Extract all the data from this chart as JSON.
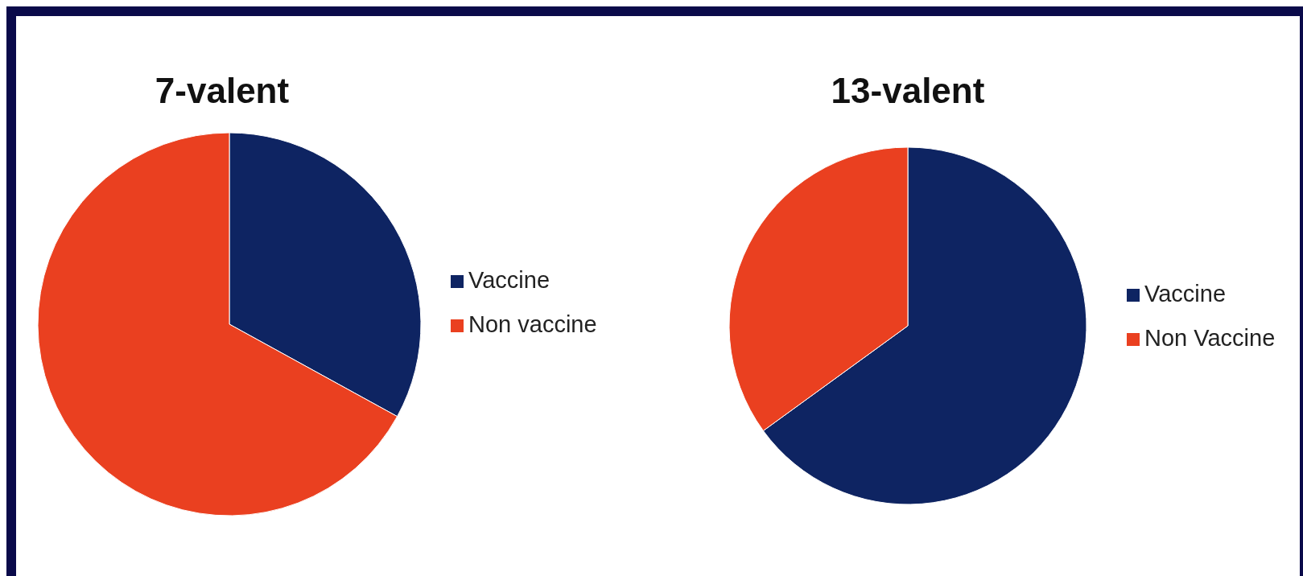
{
  "chart_data": [
    {
      "type": "pie",
      "title": "7-valent",
      "categories": [
        "Vaccine",
        "Non vaccine"
      ],
      "values": [
        33,
        67
      ],
      "colors": [
        "#0e2462",
        "#ea4020"
      ],
      "legend": "right"
    },
    {
      "type": "pie",
      "title": "13-valent",
      "categories": [
        "Vaccine",
        "Non Vaccine"
      ],
      "values": [
        65,
        35
      ],
      "colors": [
        "#0e2462",
        "#ea4020"
      ],
      "legend": "right"
    }
  ]
}
